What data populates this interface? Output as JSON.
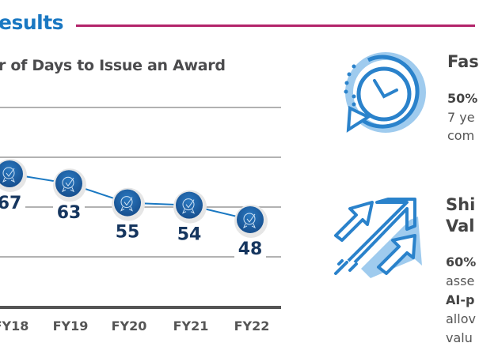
{
  "header": {
    "section_title": "esults"
  },
  "chart_data": {
    "type": "line",
    "title": "r of Days to Issue an Award",
    "categories": [
      "FY18",
      "FY19",
      "FY20",
      "FY21",
      "FY22"
    ],
    "values": [
      67,
      63,
      55,
      54,
      48
    ],
    "xlabel": "",
    "ylabel": "",
    "grid": true,
    "marker": "award-badge",
    "colors": {
      "line": "#1a78c2",
      "marker": "#1b5fa3",
      "label": "#16365f",
      "grid": "#999999",
      "axis": "#555555"
    }
  },
  "right_panel": {
    "block1": {
      "heading": "Fas",
      "line1": "50%",
      "line2": "7 ye",
      "line3": "com"
    },
    "block2": {
      "heading1": "Shi",
      "heading2": "Val",
      "line1": "60%",
      "line2": "asse",
      "line3": "AI-p",
      "line4": "allov",
      "line5": "valu"
    }
  }
}
